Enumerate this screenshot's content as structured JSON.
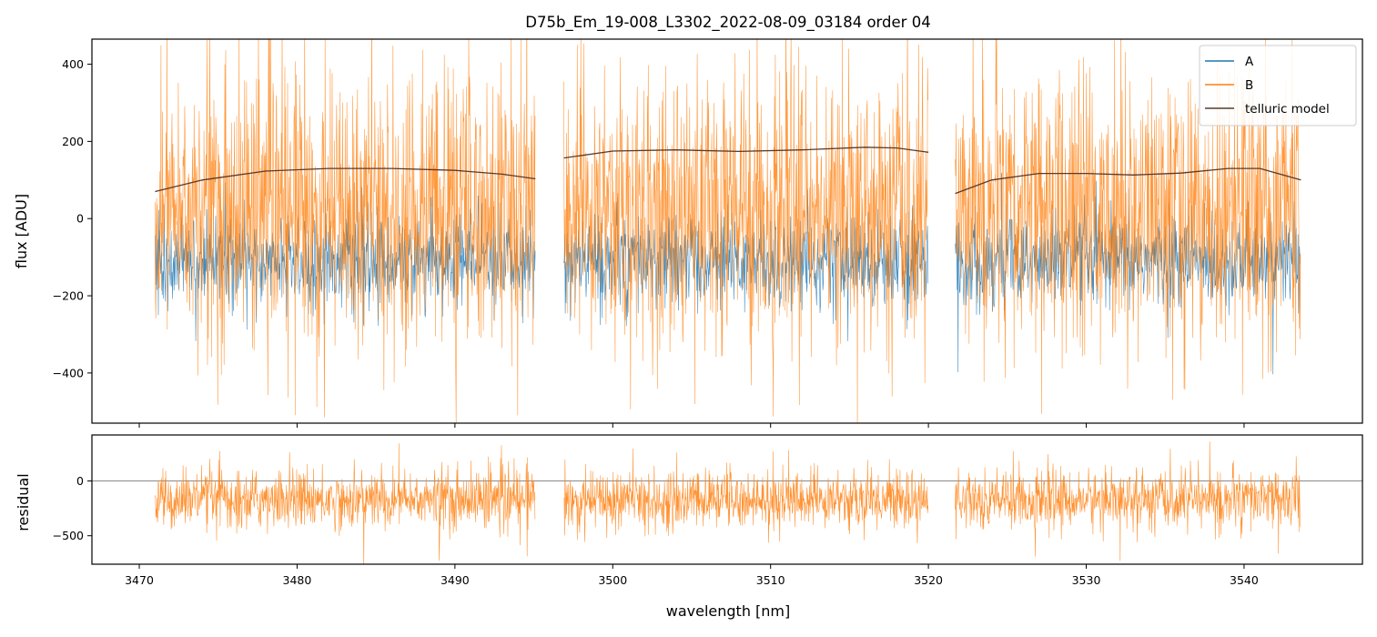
{
  "chart_data": [
    {
      "type": "line",
      "title": "D75b_Em_19-008_L3302_2022-08-09_03184  order 04",
      "xlabel": "",
      "ylabel": "flux [ADU]",
      "xlim": [
        3467.0,
        3547.5
      ],
      "ylim": [
        -530,
        465
      ],
      "x_ticks": [
        3470,
        3480,
        3490,
        3500,
        3510,
        3520,
        3530,
        3540
      ],
      "y_ticks": [
        -400,
        -200,
        0,
        200,
        400
      ],
      "y_tick_labels": [
        "−400",
        "−200",
        "0",
        "200",
        "400"
      ],
      "grid": false,
      "legend": {
        "position": "top-right",
        "entries": [
          "A",
          "B",
          "telluric model"
        ]
      },
      "segments": [
        [
          3471.0,
          3495.1
        ],
        [
          3496.9,
          3520.0
        ],
        [
          3521.7,
          3543.6
        ]
      ],
      "series": [
        {
          "name": "A",
          "color": "#1f77b4",
          "description": "noisy spectrum centred near -110 ADU, scatter about +/-120 ADU",
          "center": -110,
          "spread": 120
        },
        {
          "name": "B",
          "color": "#ff7f0e",
          "description": "noisy spectrum centred near +20 ADU with large spikes, scatter about +/-350 ADU",
          "center": 20,
          "spread": 360
        },
        {
          "name": "telluric model",
          "color": "#5a3a2a",
          "points": [
            [
              3471.0,
              70
            ],
            [
              3474.0,
              100
            ],
            [
              3478.0,
              123
            ],
            [
              3482.0,
              130
            ],
            [
              3486.0,
              130
            ],
            [
              3490.0,
              125
            ],
            [
              3493.0,
              115
            ],
            [
              3495.1,
              103
            ],
            [
              3496.9,
              157
            ],
            [
              3500.0,
              175
            ],
            [
              3504.0,
              178
            ],
            [
              3508.0,
              174
            ],
            [
              3512.0,
              178
            ],
            [
              3516.0,
              185
            ],
            [
              3518.0,
              183
            ],
            [
              3520.0,
              172
            ],
            [
              3521.7,
              65
            ],
            [
              3524.0,
              100
            ],
            [
              3527.0,
              117
            ],
            [
              3530.0,
              117
            ],
            [
              3533.0,
              113
            ],
            [
              3536.0,
              118
            ],
            [
              3539.0,
              130
            ],
            [
              3541.0,
              130
            ],
            [
              3543.6,
              100
            ]
          ]
        }
      ]
    },
    {
      "type": "line",
      "title": "",
      "xlabel": "wavelength [nm]",
      "ylabel": "residual",
      "xlim": [
        3467.0,
        3547.5
      ],
      "ylim": [
        -760,
        420
      ],
      "x_ticks": [
        3470,
        3480,
        3490,
        3500,
        3510,
        3520,
        3530,
        3540
      ],
      "x_tick_labels": [
        "3470",
        "3480",
        "3490",
        "3500",
        "3510",
        "3520",
        "3530",
        "3540"
      ],
      "y_ticks": [
        -500,
        0
      ],
      "y_tick_labels": [
        "−500",
        "0"
      ],
      "grid": false,
      "reference_line": 0,
      "series": [
        {
          "name": "residual",
          "color": "#ff7f0e",
          "description": "residual centred near -170, scatter about +/-260",
          "center": -170,
          "spread": 260
        }
      ]
    }
  ]
}
